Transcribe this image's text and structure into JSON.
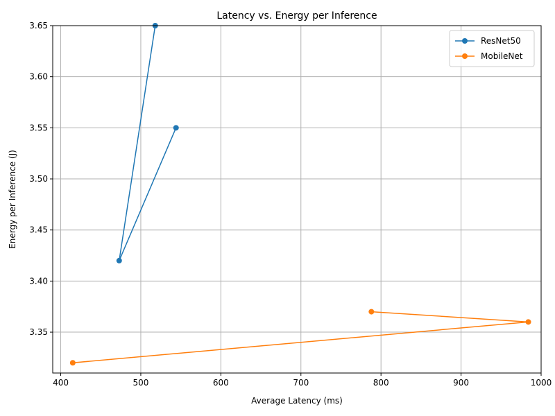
{
  "chart_data": {
    "type": "line",
    "title": "Latency vs. Energy per Inference",
    "xlabel": "Average Latency (ms)",
    "ylabel": "Energy per Inference (J)",
    "xlim": [
      390,
      1000
    ],
    "ylim": [
      3.31,
      3.65
    ],
    "x_ticks": [
      400,
      500,
      600,
      700,
      800,
      900,
      1000
    ],
    "y_ticks": [
      3.35,
      3.4,
      3.45,
      3.5,
      3.55,
      3.6,
      3.65
    ],
    "grid": true,
    "legend_position": "top-right",
    "series": [
      {
        "name": "ResNet50",
        "color": "#1f77b4",
        "marker": "circle",
        "points": [
          {
            "x": 518,
            "y": 3.65
          },
          {
            "x": 473,
            "y": 3.42
          },
          {
            "x": 544,
            "y": 3.55
          }
        ]
      },
      {
        "name": "MobileNet",
        "color": "#ff7f0e",
        "marker": "circle",
        "points": [
          {
            "x": 788,
            "y": 3.37
          },
          {
            "x": 984,
            "y": 3.36
          },
          {
            "x": 415,
            "y": 3.32
          }
        ]
      }
    ]
  }
}
